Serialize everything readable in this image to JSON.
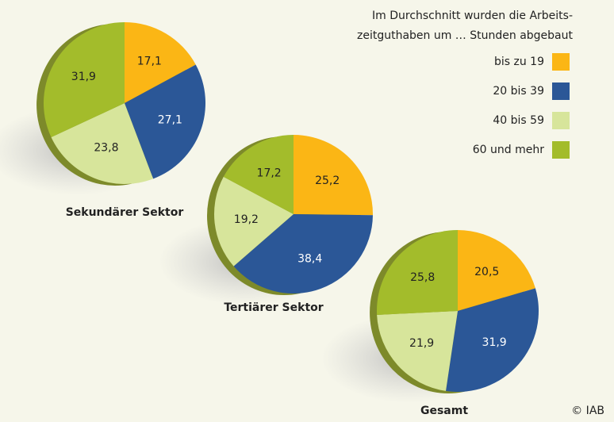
{
  "legend": {
    "title": [
      "Im Durchschnitt wurden die Arbeits-",
      "zeitguthaben um … Stunden abgebaut"
    ],
    "entries": [
      "bis zu 19",
      "20 bis 39",
      "40 bis 59",
      "60 und mehr"
    ],
    "colors": [
      "#fbb615",
      "#2b5797",
      "#d7e59b",
      "#a3bc2b"
    ]
  },
  "credit": "© IAB",
  "chart_data": [
    {
      "type": "pie",
      "title": "Sekundärer Sektor",
      "values": [
        17.1,
        27.1,
        23.8,
        31.9
      ],
      "value_labels": [
        "17,1",
        "27,1",
        "23,8",
        "31,9"
      ]
    },
    {
      "type": "pie",
      "title": "Tertiärer Sektor",
      "values": [
        25.2,
        38.4,
        19.2,
        17.2
      ],
      "value_labels": [
        "25,2",
        "38,4",
        "19,2",
        "17,2"
      ]
    },
    {
      "type": "pie",
      "title": "Gesamt",
      "values": [
        20.5,
        31.9,
        21.9,
        25.8
      ],
      "value_labels": [
        "20,5",
        "31,9",
        "21,9",
        "25,8"
      ]
    }
  ]
}
